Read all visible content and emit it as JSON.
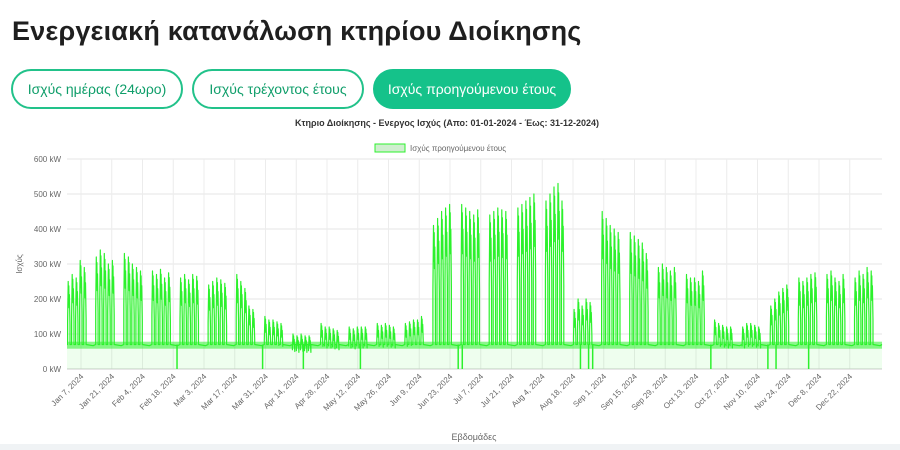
{
  "page": {
    "title": "Ενεργειακή κατανάλωση κτηρίου Διοίκησης"
  },
  "tabs": [
    {
      "label": "Ισχύς ημέρας (24ωρο)",
      "active": false
    },
    {
      "label": "Ισχύς τρέχοντος έτους",
      "active": false
    },
    {
      "label": "Ισχύς προηγούμενου έτους",
      "active": true
    }
  ],
  "colors": {
    "accent": "#15c28a",
    "series": "#2cf12c",
    "legend_fill": "#cfeecf"
  },
  "chart_data": {
    "type": "area",
    "title": "Κτηριο Διοίκησης - Ενεργος Ισχύς (Απο: 01-01-2024 - Έως: 31-12-2024)",
    "xlabel": "Εβδομάδες",
    "ylabel": "Ισχύς",
    "ylim": [
      0,
      600
    ],
    "y_ticks": [
      {
        "value": 0,
        "label": "0 kW"
      },
      {
        "value": 100,
        "label": "100 kW"
      },
      {
        "value": 200,
        "label": "200 kW"
      },
      {
        "value": 300,
        "label": "300 kW"
      },
      {
        "value": 400,
        "label": "400 kW"
      },
      {
        "value": 500,
        "label": "500 kW"
      },
      {
        "value": 600,
        "label": "600 kW"
      }
    ],
    "x_ticks": [
      "Jan 7, 2024",
      "Jan 21, 2024",
      "Feb 4, 2024",
      "Feb 18, 2024",
      "Mar 3, 2024",
      "Mar 17, 2024",
      "Mar 31, 2024",
      "Apr 14, 2024",
      "Apr 28, 2024",
      "May 12, 2024",
      "May 26, 2024",
      "Jun 9, 2024",
      "Jun 23, 2024",
      "Jul 7, 2024",
      "Jul 21, 2024",
      "Aug 4, 2024",
      "Aug 18, 2024",
      "Sep 1, 2024",
      "Sep 15, 2024",
      "Sep 29, 2024",
      "Oct 13, 2024",
      "Oct 27, 2024",
      "Nov 10, 2024",
      "Nov 24, 2024",
      "Dec 8, 2024",
      "Dec 22, 2024"
    ],
    "legend_position": "top-center",
    "grid": true,
    "series": [
      {
        "name": "Ισχύς προηγούμενου έτους",
        "baseline_kw": 70,
        "weekly_peaks_kw": [
          [
            250,
            270,
            260,
            310,
            290
          ],
          [
            320,
            340,
            330,
            300,
            310
          ],
          [
            330,
            320,
            300,
            290,
            280
          ],
          [
            280,
            270,
            285,
            260,
            275
          ],
          [
            260,
            270,
            255,
            270,
            265
          ],
          [
            240,
            250,
            260,
            255,
            245
          ],
          [
            270,
            250,
            230,
            180,
            170
          ],
          [
            150,
            140,
            140,
            135,
            130
          ],
          [
            100,
            95,
            100,
            95,
            95
          ],
          [
            130,
            120,
            120,
            115,
            110
          ],
          [
            120,
            115,
            120,
            120,
            120
          ],
          [
            130,
            125,
            130,
            125,
            120
          ],
          [
            130,
            135,
            140,
            140,
            150
          ],
          [
            410,
            430,
            450,
            460,
            470
          ],
          [
            470,
            460,
            450,
            440,
            455
          ],
          [
            440,
            450,
            460,
            455,
            450
          ],
          [
            460,
            470,
            480,
            490,
            500
          ],
          [
            480,
            500,
            520,
            530,
            480
          ],
          [
            170,
            200,
            180,
            200,
            190
          ],
          [
            450,
            430,
            410,
            400,
            390
          ],
          [
            390,
            380,
            370,
            360,
            330
          ],
          [
            290,
            300,
            290,
            280,
            290
          ],
          [
            270,
            260,
            260,
            250,
            280
          ],
          [
            140,
            130,
            125,
            120,
            120
          ],
          [
            120,
            130,
            130,
            125,
            120
          ],
          [
            180,
            200,
            220,
            230,
            240
          ],
          [
            260,
            250,
            260,
            270,
            275
          ],
          [
            270,
            280,
            260,
            250,
            270
          ],
          [
            260,
            280,
            270,
            290,
            280
          ]
        ]
      }
    ]
  }
}
